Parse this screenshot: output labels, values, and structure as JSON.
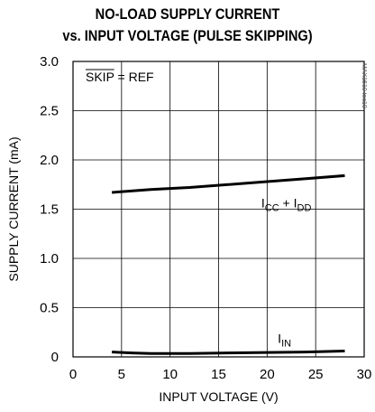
{
  "chart_data": {
    "type": "line",
    "title_line1": "NO-LOAD SUPPLY CURRENT",
    "title_line2": "vs. INPUT VOLTAGE (PULSE SKIPPING)",
    "xlabel": "INPUT VOLTAGE (V)",
    "ylabel": "SUPPLY CURRENT (mA)",
    "xlim": [
      0,
      30
    ],
    "ylim": [
      0,
      3.0
    ],
    "xticks": [
      "0",
      "5",
      "10",
      "15",
      "20",
      "25",
      "30"
    ],
    "yticks": [
      "0",
      "0.5",
      "1.0",
      "1.5",
      "2.0",
      "2.5",
      "3.0"
    ],
    "grid": true,
    "condition": {
      "overlined": "SKIP",
      "rest": " = REF"
    },
    "figure_code": "MAX1519 toc10",
    "series": [
      {
        "name_main": "I",
        "name_sub": "CC",
        "name_mid": " + I",
        "name_sub2": "DD",
        "x": [
          4,
          8,
          12,
          16,
          20,
          24,
          28
        ],
        "y": [
          1.67,
          1.7,
          1.72,
          1.75,
          1.78,
          1.81,
          1.84
        ]
      },
      {
        "name_main": "I",
        "name_sub": "IN",
        "name_mid": "",
        "name_sub2": "",
        "x": [
          4,
          6,
          8,
          12,
          16,
          20,
          24,
          28
        ],
        "y": [
          0.05,
          0.04,
          0.035,
          0.035,
          0.04,
          0.045,
          0.05,
          0.06
        ]
      }
    ]
  }
}
